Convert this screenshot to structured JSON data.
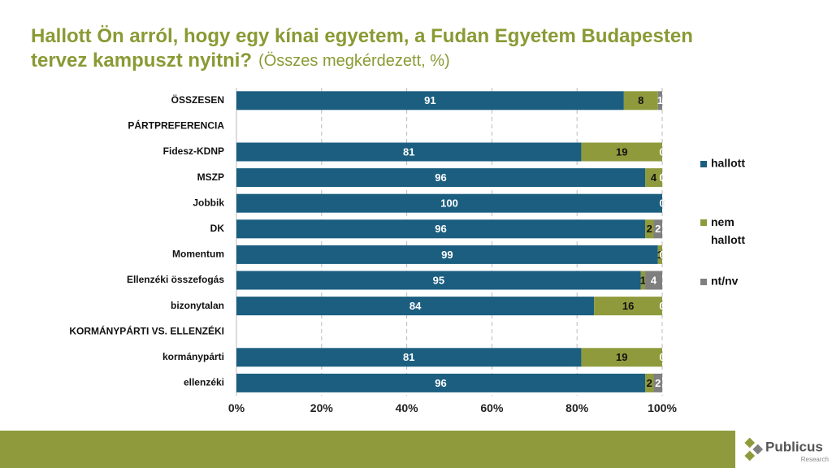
{
  "chart_data": {
    "type": "stacked-barh",
    "title": "Hallott Ön arról, hogy egy kínai egyetem, a Fudan Egyetem Budapesten tervez kampuszt nyitni?",
    "subtitle": "(Összes megkérdezett, %)",
    "categories": [
      "ÖSSZESEN",
      "PÁRTPREFERENCIA",
      "Fidesz-KDNP",
      "MSZP",
      "Jobbik",
      "DK",
      "Momentum",
      "Ellenzéki összefogás",
      "bizonytalan",
      "KORMÁNYPÁRTI VS. ELLENZÉKI",
      "kormánypárti",
      "ellenzéki"
    ],
    "series": [
      {
        "name": "hallott",
        "color": "#1b5e80",
        "values": [
          91,
          null,
          81,
          96,
          100,
          96,
          99,
          95,
          84,
          null,
          81,
          96
        ]
      },
      {
        "name": "nem hallott",
        "color": "#8f9a3c",
        "values": [
          8,
          null,
          19,
          4,
          0,
          2,
          1,
          1,
          16,
          null,
          19,
          2
        ]
      },
      {
        "name": "nt/nv",
        "color": "#7f7f7f",
        "values": [
          1,
          null,
          0,
          0,
          0,
          2,
          0,
          4,
          0,
          null,
          0,
          2
        ]
      }
    ],
    "xlim": [
      0,
      100
    ],
    "xticks": [
      {
        "value": 0,
        "label": "0%"
      },
      {
        "value": 20,
        "label": "20%"
      },
      {
        "value": 40,
        "label": "40%"
      },
      {
        "value": 60,
        "label": "60%"
      },
      {
        "value": 80,
        "label": "80%"
      },
      {
        "value": 100,
        "label": "100%"
      }
    ],
    "grid": true,
    "legend": "right"
  },
  "logo": {
    "name": "Publicus",
    "sub": "Research"
  }
}
